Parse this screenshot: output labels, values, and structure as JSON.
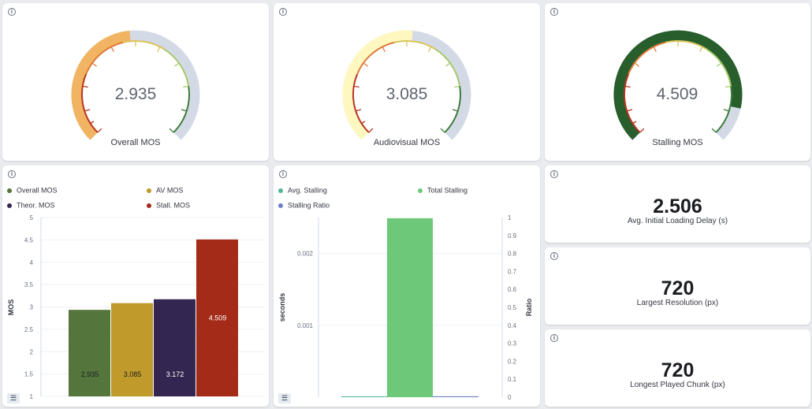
{
  "gauges": [
    {
      "value": "2.935",
      "title": "Overall MOS",
      "color": "#f0b462",
      "fraction": 0.48
    },
    {
      "value": "3.085",
      "title": "Audiovisual MOS",
      "color": "#fef8c0",
      "fraction": 0.52
    },
    {
      "value": "4.509",
      "title": "Stalling MOS",
      "color": "#275e2b",
      "fraction": 0.88
    }
  ],
  "mos_chart": {
    "legend": [
      {
        "label": "Overall MOS",
        "color": "#54763c"
      },
      {
        "label": "AV MOS",
        "color": "#c09a2a"
      },
      {
        "label": "Theor. MOS",
        "color": "#332650"
      },
      {
        "label": "Stall. MOS",
        "color": "#a32b17"
      }
    ]
  },
  "stall_chart": {
    "legend": [
      {
        "label": "Avg. Stalling",
        "color": "#54b399"
      },
      {
        "label": "Total Stalling",
        "color": "#6dc87a"
      },
      {
        "label": "Stalling Ratio",
        "color": "#6f7fc7"
      }
    ]
  },
  "metrics": [
    {
      "value": "2.506",
      "label": "Avg. Initial Loading Delay (s)"
    },
    {
      "value": "720",
      "label": "Largest Resolution (px)"
    },
    {
      "value": "720",
      "label": "Longest Played Chunk (px)"
    }
  ],
  "icons": {
    "info": "info-icon",
    "legend_toggle": "list-icon"
  },
  "chart_data": [
    {
      "type": "bar",
      "categories": [
        "Overall MOS",
        "AV MOS",
        "Theor. MOS",
        "Stall. MOS"
      ],
      "values": [
        2.935,
        3.085,
        3.172,
        4.509
      ],
      "labels": [
        "2.935",
        "3.085",
        "3.172",
        "4.509"
      ],
      "colors": [
        "#54763c",
        "#c09a2a",
        "#332650",
        "#a32b17"
      ],
      "ylabel": "MOS",
      "ylim": [
        1,
        5
      ],
      "yticks": [
        "1",
        "1.5",
        "2",
        "2.5",
        "3",
        "3.5",
        "4",
        "4.5",
        "5"
      ],
      "grid": true,
      "legend": "top"
    },
    {
      "type": "bar",
      "series": [
        {
          "name": "Avg. Stalling",
          "values": [
            0.0
          ],
          "axis": "left",
          "color": "#54b399"
        },
        {
          "name": "Total Stalling",
          "values": [
            0.00249
          ],
          "axis": "left",
          "color": "#6dc87a"
        },
        {
          "name": "Stalling Ratio",
          "values": [
            0.005
          ],
          "axis": "right",
          "color": "#6f7fc7"
        }
      ],
      "ylabel": "seconds",
      "ylabel_right": "Ratio",
      "ylim": [
        0,
        0.0025
      ],
      "yticks": [
        "0.001",
        "0.002"
      ],
      "ylim_right": [
        0,
        1
      ],
      "yticks_right": [
        "0",
        "0.1",
        "0.2",
        "0.3",
        "0.4",
        "0.5",
        "0.6",
        "0.7",
        "0.8",
        "0.9",
        "1"
      ],
      "grid": true,
      "legend": "top"
    }
  ]
}
